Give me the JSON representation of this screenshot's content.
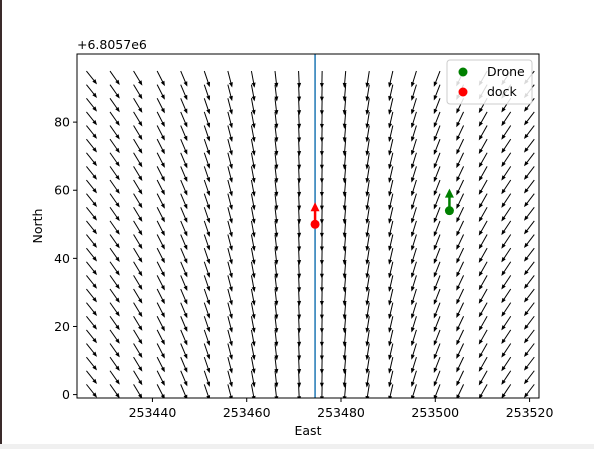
{
  "chart_data": {
    "type": "quiver",
    "x_offset_label": "+6.8057e6",
    "xlabel": "East",
    "ylabel": "North",
    "xlim": [
      253424,
      253522
    ],
    "ylim": [
      -1,
      100
    ],
    "xticks": [
      253440,
      253460,
      253480,
      253500,
      253520
    ],
    "yticks": [
      0,
      20,
      40,
      60,
      80
    ],
    "xtick_labels": [
      "253440",
      "253460",
      "253480",
      "253500",
      "253520"
    ],
    "ytick_labels": [
      "0",
      "20",
      "40",
      "60",
      "80"
    ],
    "vector_field": {
      "x_start": 253426,
      "x_step": 5,
      "x_count": 20,
      "y_start": 3,
      "y_step": 4,
      "y_count": 24,
      "center_line_x": 253474.5,
      "color": "#000000"
    },
    "vertical_line": {
      "x": 253474.5,
      "color": "#1f77b4"
    },
    "series": [
      {
        "name": "Drone",
        "x": [
          253503
        ],
        "y": [
          54
        ],
        "color": "#008000",
        "heading": "north"
      },
      {
        "name": "dock",
        "x": [
          253474.5
        ],
        "y": [
          50
        ],
        "color": "#ff0000",
        "heading": "north"
      }
    ],
    "legend_position": "top-right",
    "grid": false
  }
}
